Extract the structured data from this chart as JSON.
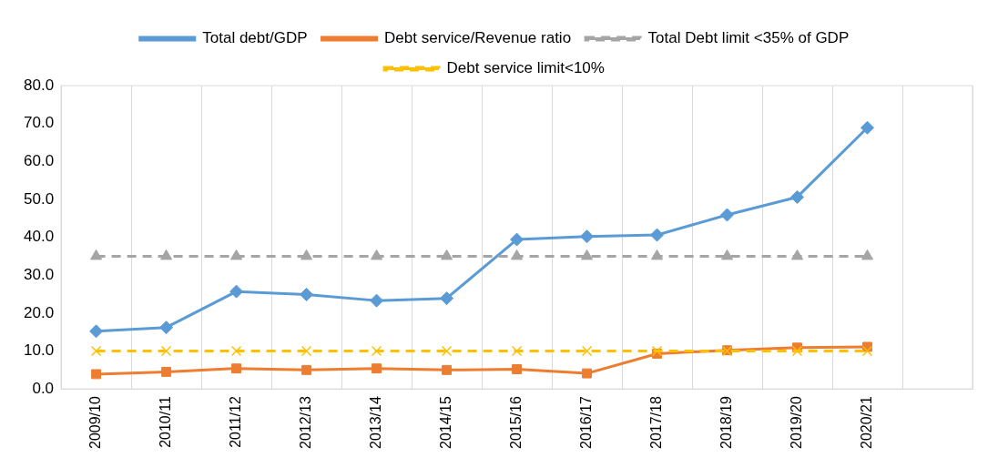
{
  "chart_data": {
    "type": "line",
    "categories": [
      "2009/10",
      "2010/11",
      "2011/12",
      "2012/13",
      "2013/14",
      "2014/15",
      "2015/16",
      "2016/17",
      "2017/18",
      "2018/19",
      "2019/20",
      "2020/21",
      null
    ],
    "series": [
      {
        "name": "Total debt/GDP",
        "color": "#5b9bd5",
        "marker": "diamond",
        "line_style": "solid",
        "values": [
          15.2,
          16.2,
          25.7,
          24.9,
          23.3,
          23.9,
          39.4,
          40.2,
          40.6,
          45.9,
          50.6,
          68.9,
          null
        ]
      },
      {
        "name": "Debt service/Revenue ratio",
        "color": "#ed7d31",
        "marker": "square",
        "line_style": "solid",
        "values": [
          3.9,
          4.5,
          5.4,
          5.0,
          5.4,
          5.0,
          5.2,
          4.1,
          9.3,
          10.2,
          10.9,
          11.1,
          null
        ]
      },
      {
        "name": "Total Debt limit <35% of GDP",
        "color": "#a5a5a5",
        "marker": "triangle",
        "line_style": "dashed",
        "values": [
          35,
          35,
          35,
          35,
          35,
          35,
          35,
          35,
          35,
          35,
          35,
          35,
          null
        ]
      },
      {
        "name": "Debt service limit<10%",
        "color": "#ffc000",
        "marker": "cross",
        "line_style": "dashed",
        "values": [
          10,
          10,
          10,
          10,
          10,
          10,
          10,
          10,
          10,
          10,
          10,
          10,
          null
        ]
      }
    ],
    "ylim": [
      0,
      80
    ],
    "yticks": [
      {
        "value": 0,
        "label": "0.0"
      },
      {
        "value": 10,
        "label": "10.0"
      },
      {
        "value": 20,
        "label": "20.0"
      },
      {
        "value": 30,
        "label": "30.0"
      },
      {
        "value": 40,
        "label": "40.0"
      },
      {
        "value": 50,
        "label": "50.0"
      },
      {
        "value": 60,
        "label": "60.0"
      },
      {
        "value": 70,
        "label": "70.0"
      },
      {
        "value": 80,
        "label": "80.0"
      }
    ],
    "grid": "x",
    "legend": "top"
  }
}
